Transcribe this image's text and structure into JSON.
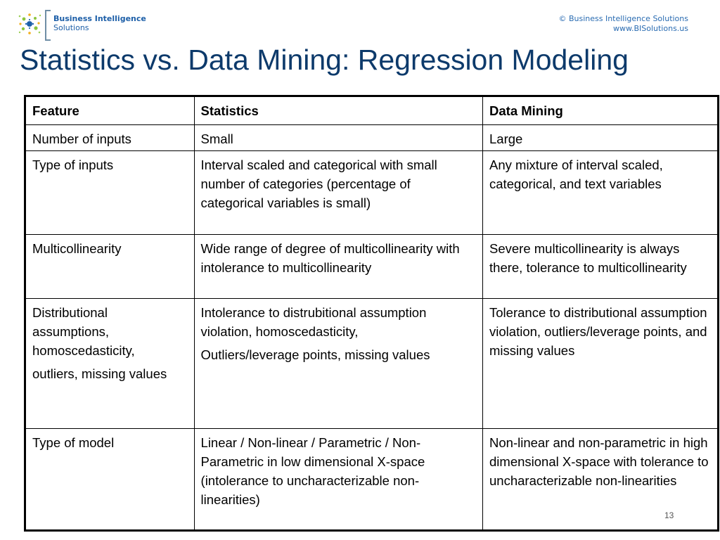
{
  "header": {
    "logo_name": "Business Intelligence",
    "logo_sub": "Solutions",
    "copyright_line1": "© Business Intelligence Solutions",
    "copyright_line2": "www.BISolutions.us"
  },
  "title": "Statistics vs. Data Mining: Regression Modeling",
  "table": {
    "headers": [
      "Feature",
      "Statistics",
      "Data Mining"
    ],
    "rows": [
      {
        "feature": [
          "Number of inputs"
        ],
        "statistics": [
          "Small"
        ],
        "data_mining": [
          "Large"
        ]
      },
      {
        "feature": [
          "Type of inputs"
        ],
        "statistics": [
          "Interval scaled and categorical with small number of categories (percentage of categorical variables is small)"
        ],
        "data_mining": [
          "Any mixture of interval scaled, categorical, and text variables"
        ]
      },
      {
        "feature": [
          "Multicollinearity"
        ],
        "statistics": [
          "Wide range of degree of multicollinearity with intolerance to multicollinearity"
        ],
        "data_mining": [
          "Severe multicollinearity is always there, tolerance to multicollinearity"
        ]
      },
      {
        "feature": [
          "Distributional assumptions, homoscedasticity,",
          "outliers, missing values"
        ],
        "statistics": [
          "Intolerance to distrubitional assumption violation, homoscedasticity,",
          "Outliers/leverage points, missing values"
        ],
        "data_mining": [
          "Tolerance to distributional assumption violation, outliers/leverage points, and missing values"
        ]
      },
      {
        "feature": [
          "Type of model"
        ],
        "statistics": [
          "Linear / Non-linear / Parametric / Non-Parametric in low dimensional X-space (intolerance to uncharacterizable non-linearities)"
        ],
        "data_mining": [
          "Non-linear and non-parametric in high dimensional X-space with tolerance to uncharacterizable non-linearities"
        ]
      }
    ]
  },
  "page_number": "13",
  "colors": {
    "title": "#0d3a6b",
    "brand_blue": "#1d5fa8",
    "logo_green": "#8dc63f",
    "logo_blue": "#2a6cb2"
  },
  "icons": {
    "logo": "business-intelligence-logo-icon"
  }
}
